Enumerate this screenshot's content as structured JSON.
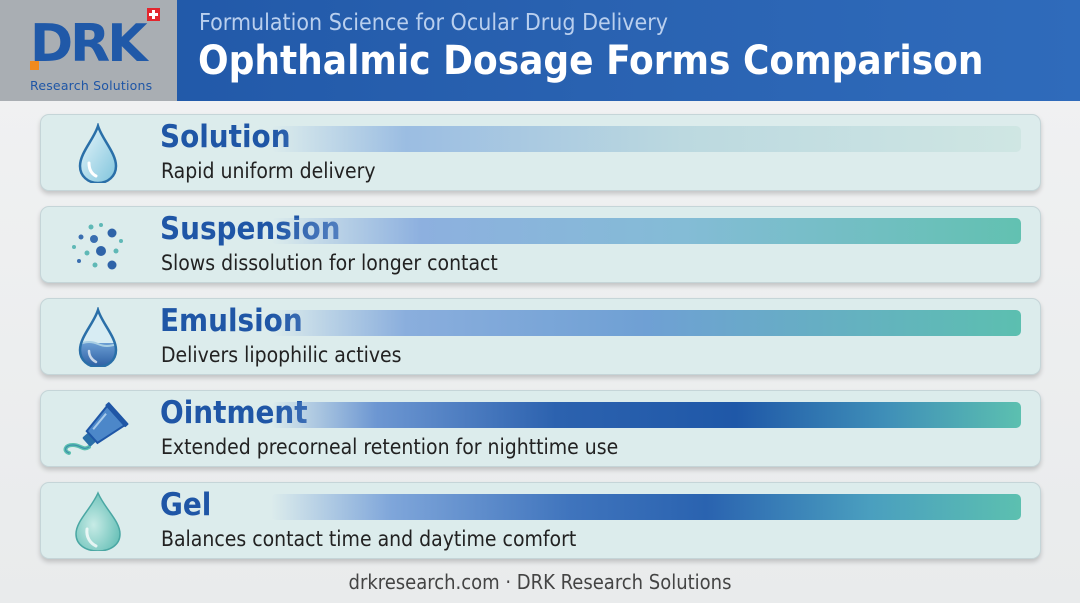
{
  "header": {
    "logo_text": "DRK",
    "logo_subtext": "Research Solutions",
    "subtitle": "Formulation Science for Ocular Drug Delivery",
    "title": "Ophthalmic Dosage Forms Comparison"
  },
  "forms": [
    {
      "name": "Solution",
      "description": "Rapid uniform delivery",
      "icon": "water-drop-icon",
      "bar_level": 0.2
    },
    {
      "name": "Suspension",
      "description": "Slows dissolution for longer contact",
      "icon": "particles-icon",
      "bar_level": 0.45
    },
    {
      "name": "Emulsion",
      "description": "Delivers lipophilic actives",
      "icon": "emulsion-drop-icon",
      "bar_level": 0.5
    },
    {
      "name": "Ointment",
      "description": "Extended precorneal retention for nighttime use",
      "icon": "ointment-tube-icon",
      "bar_level": 1.0
    },
    {
      "name": "Gel",
      "description": "Balances contact time and daytime comfort",
      "icon": "gel-drop-icon",
      "bar_level": 0.75
    }
  ],
  "footer": "drkresearch.com · DRK Research Solutions",
  "colors": {
    "header_blue": "#1f56a6",
    "bar_deep_blue": "#1f58a8",
    "bar_teal": "#5cc0b0",
    "logo_accent": "#f08a1c",
    "flag_red": "#e3262e"
  }
}
